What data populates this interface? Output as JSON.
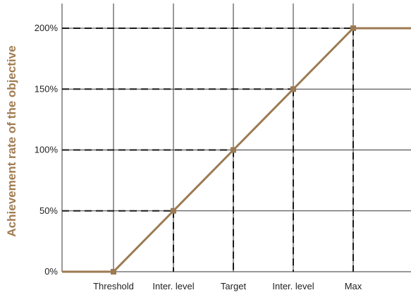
{
  "chart_data": {
    "type": "line",
    "title": "",
    "ylabel": "Achievement rate of the objective",
    "xlabel": "",
    "categories": [
      "Threshold",
      "Inter. level",
      "Target",
      "Inter. level",
      "Max"
    ],
    "series": [
      {
        "points": [
          [
            -1,
            0
          ],
          [
            0,
            0
          ],
          [
            1,
            50
          ],
          [
            2,
            100
          ],
          [
            3,
            150
          ],
          [
            4,
            200
          ],
          [
            5,
            200
          ]
        ]
      }
    ],
    "yticks": [
      "0%",
      "50%",
      "100%",
      "150%",
      "200%"
    ],
    "ytick_values": [
      0,
      50,
      100,
      150,
      200
    ],
    "ylim": [
      0,
      200
    ],
    "grid": true,
    "reference_lines": "dashed guides from each point to both axes",
    "colors": {
      "series": "#9c7a52",
      "ylabel": "#a07c52",
      "grid": "#333333",
      "dashed": "#1a1a1a"
    }
  }
}
